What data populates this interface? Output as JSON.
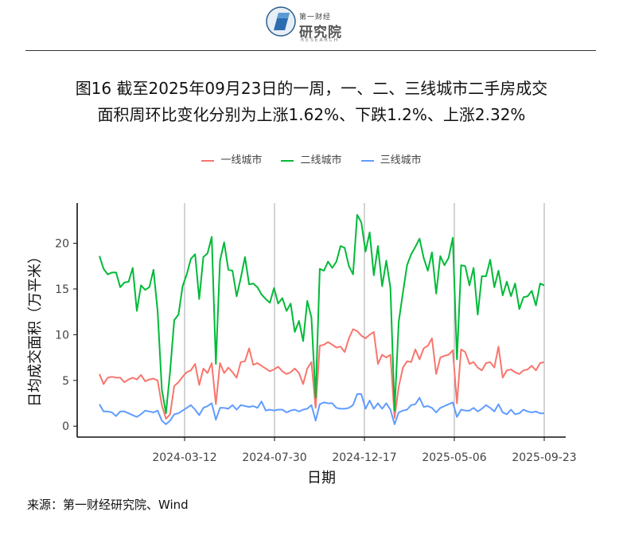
{
  "header": {
    "logo_small": "第一财经",
    "logo_main": "研究院",
    "logo_en": "RESEARCH"
  },
  "title": {
    "line1": "图16  截至2025年09月23日的一周，一、二、三线城市二手房成交",
    "line2": "面积周环比变化分别为上涨1.62%、下跌1.2%、上涨2.32%"
  },
  "source": "来源：第一财经研究院、Wind",
  "colors": {
    "tier1": "#F8766D",
    "tier2": "#00BA38",
    "tier3": "#619CFF",
    "grid": "#aaaaaa",
    "axis": "#111111"
  },
  "chart_data": {
    "type": "line",
    "title": "",
    "xlabel": "日期",
    "ylabel": "日均成交面积（万平米）",
    "ylim": [
      -1.2,
      24.4
    ],
    "yticks": [
      0,
      5,
      10,
      15,
      20
    ],
    "xtick_labels": [
      "2024-03-12",
      "2024-07-30",
      "2024-12-17",
      "2025-05-06",
      "2025-09-23"
    ],
    "x_start": "2023-12-12",
    "x_end": "2025-09-23",
    "frequency": "weekly",
    "grid": "vertical lines at x ticks",
    "legend_position": "top",
    "series": [
      {
        "name": "一线城市",
        "color": "#F8766D",
        "values": [
          5.7,
          4.6,
          5.3,
          5.4,
          5.3,
          5.3,
          4.8,
          5.1,
          5.3,
          5.1,
          5.6,
          4.9,
          5.1,
          5.2,
          5.0,
          2.3,
          0.8,
          1.3,
          4.4,
          4.8,
          5.4,
          5.9,
          6.1,
          6.8,
          4.5,
          6.3,
          5.8,
          6.9,
          2.4,
          6.9,
          5.8,
          6.4,
          5.9,
          5.3,
          7.0,
          7.1,
          8.5,
          6.7,
          6.9,
          6.6,
          6.3,
          6.0,
          6.2,
          6.5,
          6.0,
          5.7,
          5.9,
          6.3,
          5.8,
          4.6,
          6.3,
          7.0,
          2.0,
          8.8,
          8.9,
          9.2,
          8.9,
          8.6,
          8.7,
          8.1,
          9.6,
          10.6,
          10.4,
          9.9,
          9.6,
          10.0,
          10.3,
          6.8,
          7.8,
          7.5,
          7.8,
          0.9,
          4.3,
          6.4,
          7.1,
          7.0,
          8.4,
          7.3,
          8.5,
          8.8,
          9.6,
          5.7,
          7.5,
          7.7,
          7.8,
          8.3,
          2.5,
          8.4,
          8.1,
          6.8,
          7.0,
          6.4,
          6.1,
          6.9,
          7.0,
          6.4,
          8.7,
          5.3,
          6.1,
          6.2,
          5.9,
          5.7,
          6.1,
          6.2,
          6.6,
          6.1,
          6.9,
          7.0
        ]
      },
      {
        "name": "二线城市",
        "color": "#00BA38",
        "values": [
          18.6,
          17.2,
          16.6,
          16.8,
          16.8,
          15.2,
          15.7,
          15.8,
          17.3,
          12.6,
          15.4,
          14.9,
          15.2,
          17.1,
          12.6,
          4.0,
          1.4,
          6.0,
          11.6,
          12.2,
          15.3,
          16.6,
          18.3,
          18.8,
          13.9,
          18.5,
          18.9,
          20.7,
          6.8,
          18.1,
          20.1,
          17.1,
          17.0,
          14.2,
          16.2,
          18.5,
          15.5,
          15.6,
          15.2,
          14.4,
          13.9,
          13.5,
          15.1,
          13.4,
          14.0,
          12.6,
          13.4,
          10.3,
          11.5,
          9.3,
          13.7,
          11.9,
          3.1,
          17.2,
          17.0,
          18.0,
          17.3,
          18.0,
          19.7,
          19.5,
          17.5,
          16.6,
          23.1,
          22.3,
          19.1,
          21.2,
          16.5,
          19.7,
          15.3,
          18.1,
          15.1,
          1.7,
          11.4,
          14.6,
          17.6,
          18.8,
          19.6,
          20.5,
          18.4,
          17.0,
          19.0,
          14.5,
          18.6,
          17.6,
          18.4,
          20.6,
          7.3,
          17.6,
          17.5,
          15.4,
          17.3,
          12.2,
          16.4,
          16.4,
          18.2,
          15.2,
          17.0,
          14.3,
          15.8,
          14.2,
          15.6,
          12.8,
          14.1,
          14.2,
          14.8,
          13.2,
          15.6,
          15.4
        ]
      },
      {
        "name": "三线城市",
        "color": "#619CFF",
        "values": [
          2.4,
          1.6,
          1.6,
          1.5,
          1.1,
          1.6,
          1.6,
          1.4,
          1.2,
          1.0,
          1.3,
          1.7,
          1.6,
          1.5,
          1.7,
          0.6,
          0.2,
          0.6,
          1.3,
          1.4,
          1.7,
          2.0,
          2.3,
          1.8,
          1.2,
          2.0,
          2.2,
          2.5,
          0.7,
          2.0,
          2.0,
          1.9,
          2.3,
          1.8,
          2.3,
          2.2,
          2.1,
          2.2,
          2.0,
          2.7,
          1.7,
          1.8,
          1.7,
          1.8,
          1.8,
          1.5,
          1.7,
          1.8,
          1.6,
          1.8,
          1.9,
          2.3,
          0.6,
          2.4,
          2.6,
          2.5,
          2.5,
          2.0,
          1.9,
          1.9,
          2.0,
          2.3,
          3.5,
          3.5,
          1.9,
          2.8,
          1.9,
          2.5,
          1.9,
          2.5,
          1.8,
          0.2,
          1.5,
          1.7,
          1.8,
          2.3,
          2.4,
          3.1,
          2.1,
          2.2,
          2.0,
          1.5,
          2.0,
          2.2,
          2.4,
          2.6,
          1.0,
          1.8,
          1.7,
          1.7,
          2.0,
          1.6,
          1.9,
          2.3,
          2.0,
          1.6,
          2.4,
          1.5,
          1.3,
          1.8,
          1.3,
          1.4,
          1.8,
          1.6,
          1.5,
          1.6,
          1.4,
          1.4
        ]
      }
    ]
  }
}
